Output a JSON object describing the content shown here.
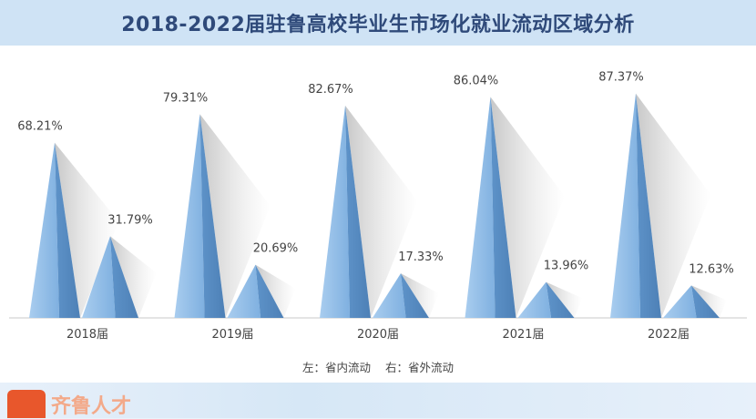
{
  "title": "2018-2022届驻鲁高校毕业生市场化就业流动区域分析",
  "legend_note": "左：省内流动    右：省外流动",
  "watermark": "齐鲁人才",
  "colors": {
    "cone": "#7fb0e0",
    "cone_dark": "#5e93c9",
    "axis": "#c8c8c8"
  },
  "chart_data": {
    "type": "bar",
    "categories": [
      "2018届",
      "2019届",
      "2020届",
      "2021届",
      "2022届"
    ],
    "series": [
      {
        "name": "省内流动",
        "values": [
          68.21,
          79.31,
          82.67,
          86.04,
          87.37
        ],
        "labels": [
          "68.21%",
          "79.31%",
          "82.67%",
          "86.04%",
          "87.37%"
        ]
      },
      {
        "name": "省外流动",
        "values": [
          31.79,
          20.69,
          17.33,
          13.96,
          12.63
        ],
        "labels": [
          "31.79%",
          "20.69%",
          "17.33%",
          "13.96%",
          "12.63%"
        ]
      }
    ],
    "ylim": [
      0,
      100
    ],
    "grid": false
  }
}
